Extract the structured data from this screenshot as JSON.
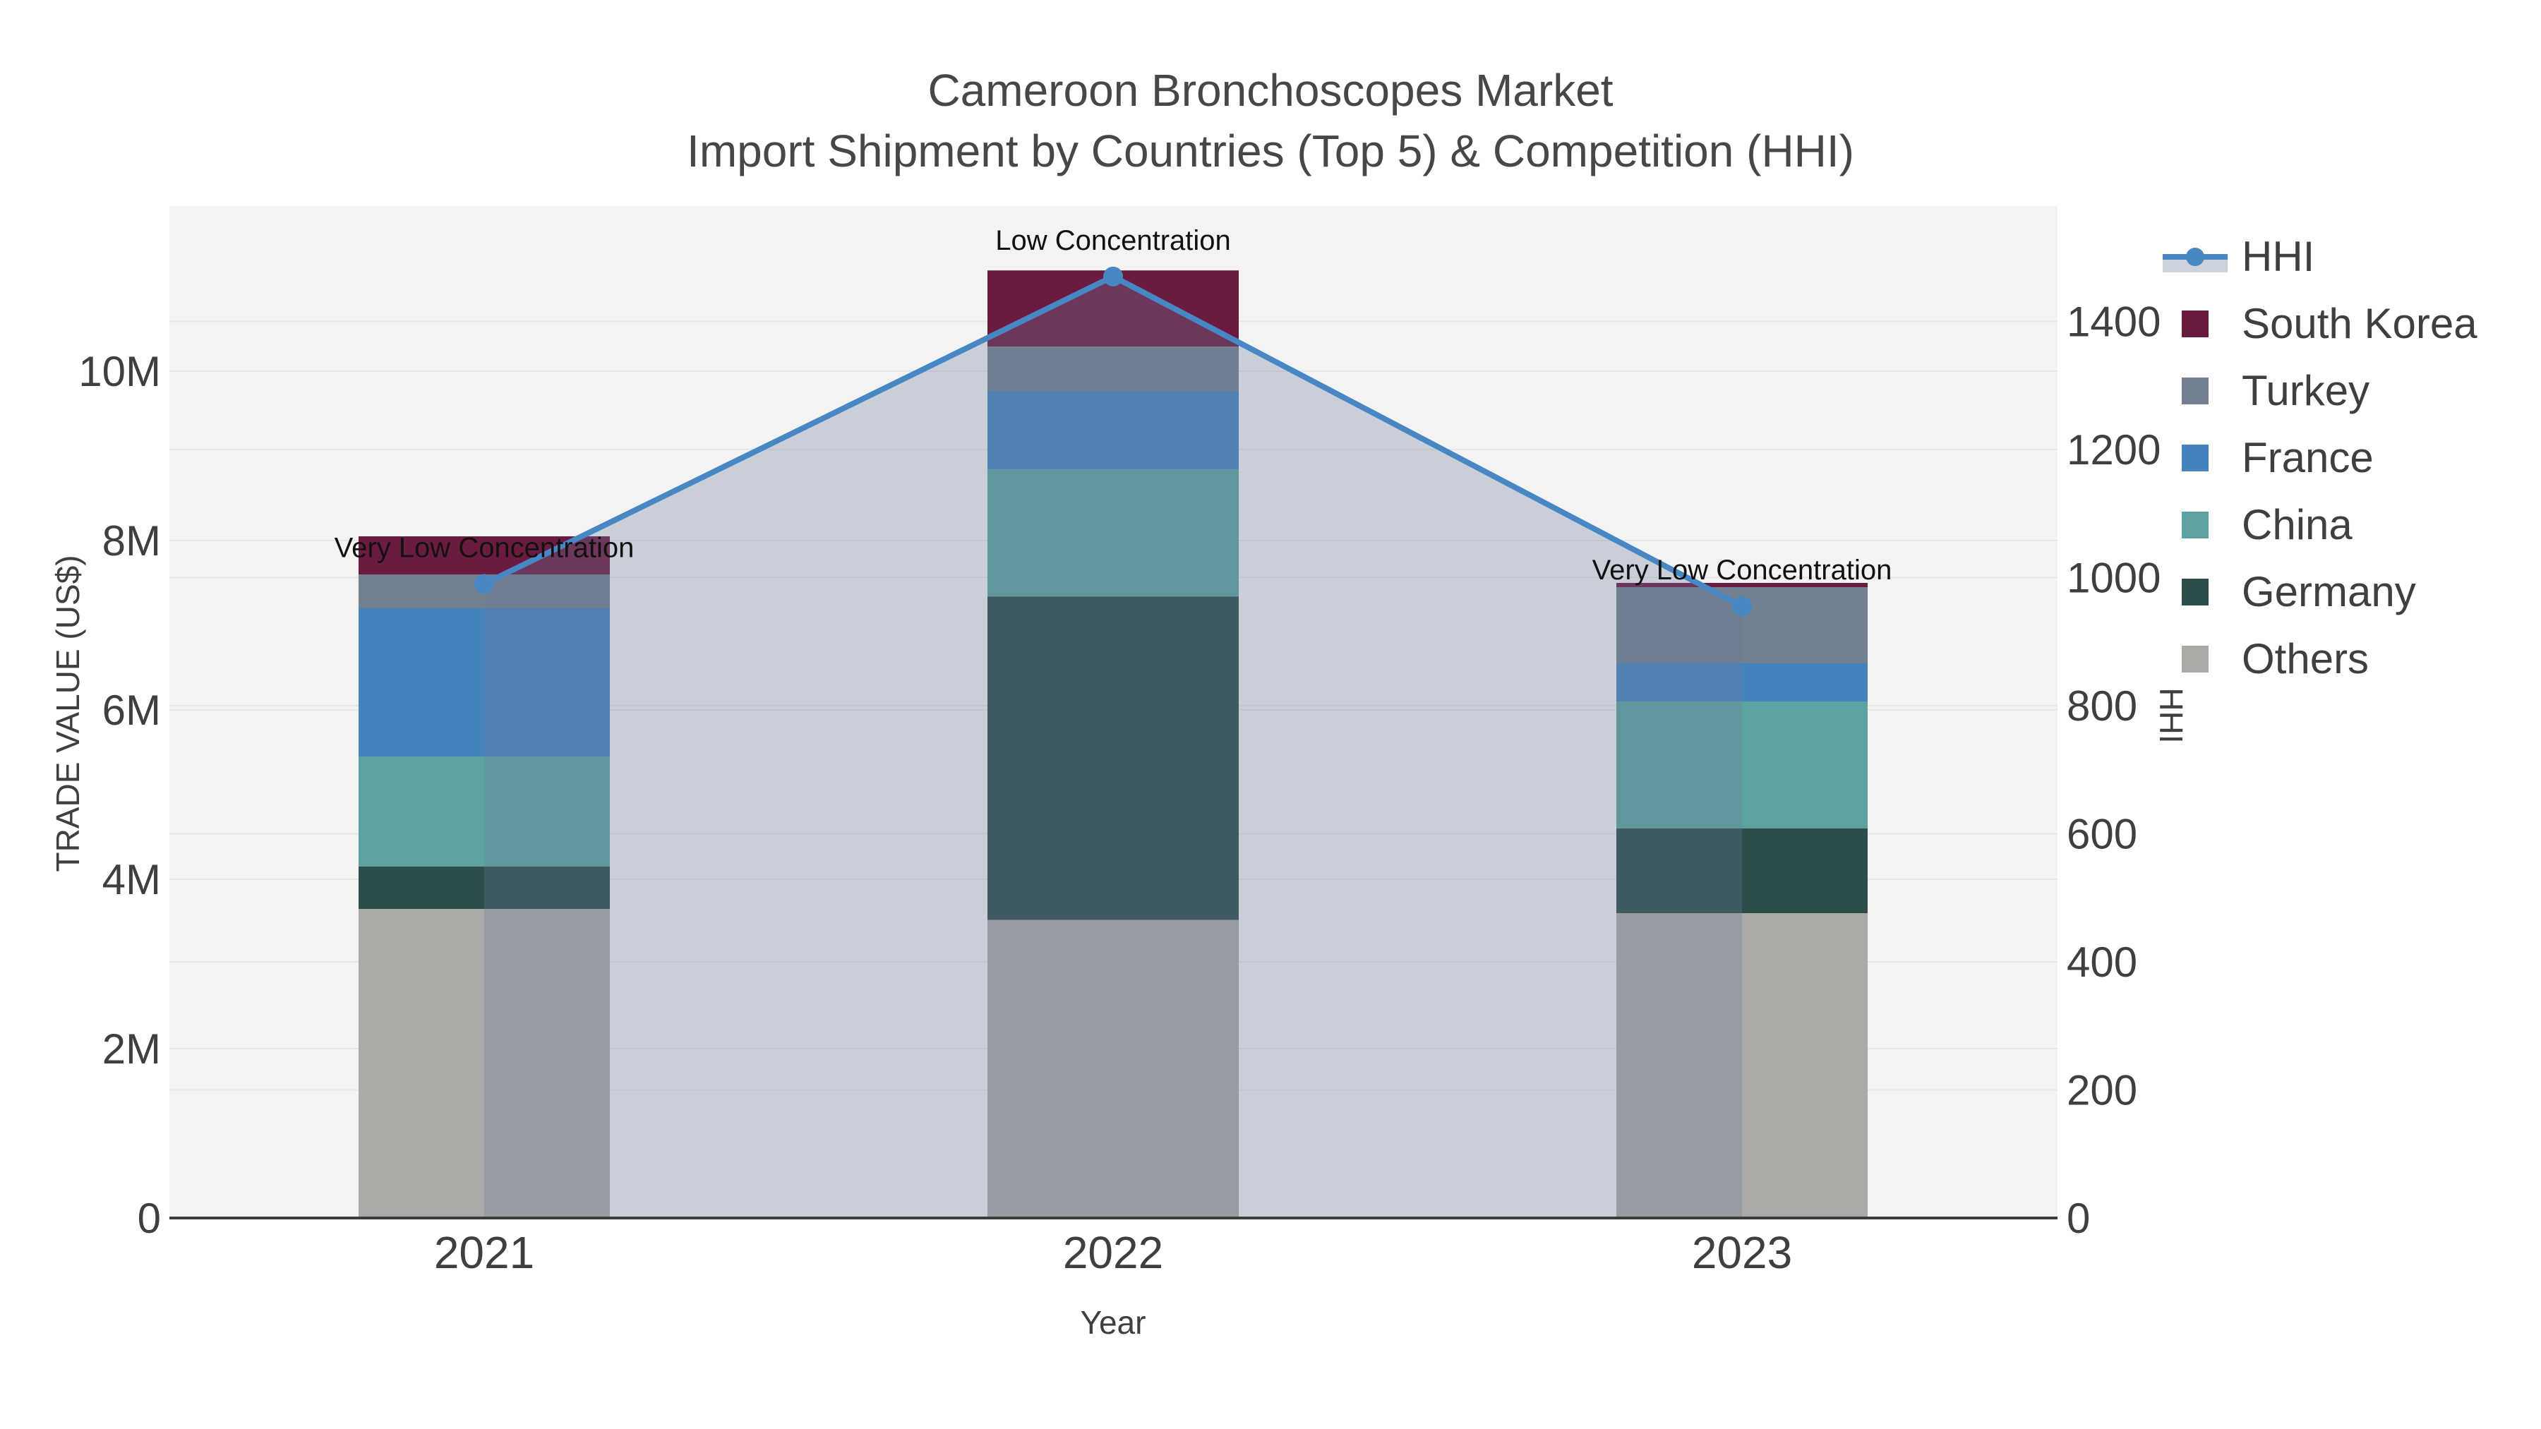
{
  "title": {
    "line1": "Cameroon Bronchoscopes Market",
    "line2": "Import Shipment by Countries (Top 5) & Competition (HHI)"
  },
  "chart_data": {
    "type": "stacked-bar+line",
    "categories": [
      "2021",
      "2022",
      "2023"
    ],
    "unit": "trade value in millions of US$",
    "series": [
      {
        "name": "Others",
        "color": "#AAAAA7",
        "values": [
          3.65,
          3.52,
          3.6
        ]
      },
      {
        "name": "Germany",
        "color": "#2D4D4B",
        "values": [
          0.5,
          3.82,
          1.0
        ]
      },
      {
        "name": "China",
        "color": "#5CA2A0",
        "values": [
          1.3,
          1.5,
          1.5
        ]
      },
      {
        "name": "France",
        "color": "#4583BF",
        "values": [
          1.75,
          0.93,
          0.45
        ]
      },
      {
        "name": "Turkey",
        "color": "#72808F",
        "values": [
          0.4,
          0.52,
          0.9
        ]
      },
      {
        "name": "South Korea",
        "color": "#6C1B40",
        "values": [
          0.45,
          0.9,
          0.05
        ]
      }
    ],
    "line_series": {
      "name": "HHI",
      "color": "#4788C4",
      "fill_color": "rgba(108,122,152,0.30)",
      "values": [
        990,
        1470,
        955
      ]
    },
    "annotations": [
      {
        "text": "Very Low Concentration",
        "category": "2021"
      },
      {
        "text": "Low Concentration",
        "category": "2022"
      },
      {
        "text": "Very Low Concentration",
        "category": "2023"
      }
    ],
    "axes": {
      "x": {
        "title": "Year",
        "ticks": [
          "2021",
          "2022",
          "2023"
        ]
      },
      "y_left": {
        "title": "TRADE VALUE (US$)",
        "ticks": [
          "0",
          "2M",
          "4M",
          "6M",
          "8M",
          "10M"
        ],
        "tick_values_musd": [
          0,
          2,
          4,
          6,
          8,
          10
        ],
        "range_musd": [
          0,
          11.95
        ],
        "grid": true
      },
      "y_right": {
        "title": "HHI",
        "ticks": [
          "0",
          "200",
          "400",
          "600",
          "800",
          "1000",
          "1200",
          "1400"
        ],
        "tick_values": [
          0,
          200,
          400,
          600,
          800,
          1000,
          1200,
          1400
        ],
        "range": [
          0,
          1580
        ],
        "grid": true
      }
    },
    "legend": {
      "position": "right",
      "order": [
        "HHI",
        "South Korea",
        "Turkey",
        "France",
        "China",
        "Germany",
        "Others"
      ]
    }
  },
  "colors": {
    "plot_bg": "#F3F3F4",
    "gridline": "#E6E6E8",
    "axis_line": "#3C3C3C",
    "tick_text": "#3F3F3F",
    "title_text": "#474747",
    "annotation_text": "#111111",
    "legend_fill_band": "#CBD2DC"
  }
}
